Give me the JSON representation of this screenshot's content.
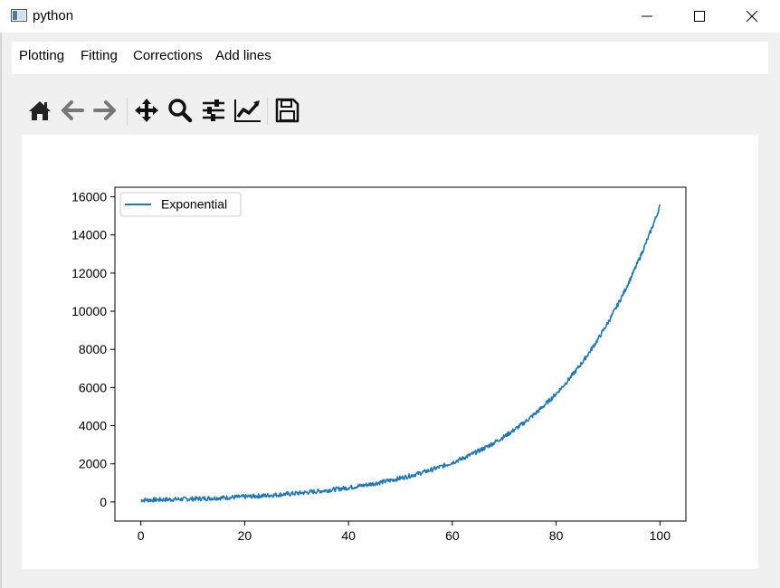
{
  "window": {
    "title": "python"
  },
  "menu": {
    "items": [
      {
        "label": "Plotting"
      },
      {
        "label": "Fitting"
      },
      {
        "label": "Corrections"
      },
      {
        "label": "Add lines"
      }
    ]
  },
  "toolbar": {
    "buttons": [
      {
        "name": "home-icon"
      },
      {
        "name": "back-arrow-icon"
      },
      {
        "name": "forward-arrow-icon"
      },
      {
        "name": "pan-icon"
      },
      {
        "name": "zoom-icon"
      },
      {
        "name": "subplots-icon"
      },
      {
        "name": "edit-axis-icon"
      },
      {
        "name": "save-icon"
      }
    ]
  },
  "colors": {
    "series": "#1f77b4"
  },
  "chart_data": {
    "type": "line",
    "title": "",
    "xlabel": "",
    "ylabel": "",
    "xlim": [
      -5,
      105
    ],
    "ylim": [
      -1000,
      16500
    ],
    "xticks": [
      0,
      20,
      40,
      60,
      80,
      100
    ],
    "yticks": [
      0,
      2000,
      4000,
      6000,
      8000,
      10000,
      12000,
      14000,
      16000
    ],
    "grid": false,
    "legend": "top-left",
    "series": [
      {
        "name": "Exponential",
        "model": "y ≈ 100·e^(0.0506·x), x from 0 to 100, noisy",
        "x": [
          0,
          5,
          10,
          15,
          20,
          25,
          30,
          35,
          40,
          45,
          50,
          55,
          60,
          65,
          70,
          75,
          80,
          85,
          90,
          95,
          100
        ],
        "y": [
          100,
          128,
          166,
          214,
          275,
          354,
          456,
          586,
          755,
          972,
          1250,
          1609,
          2071,
          2665,
          3430,
          4415,
          5682,
          7313,
          9413,
          12114,
          15500
        ]
      }
    ]
  }
}
